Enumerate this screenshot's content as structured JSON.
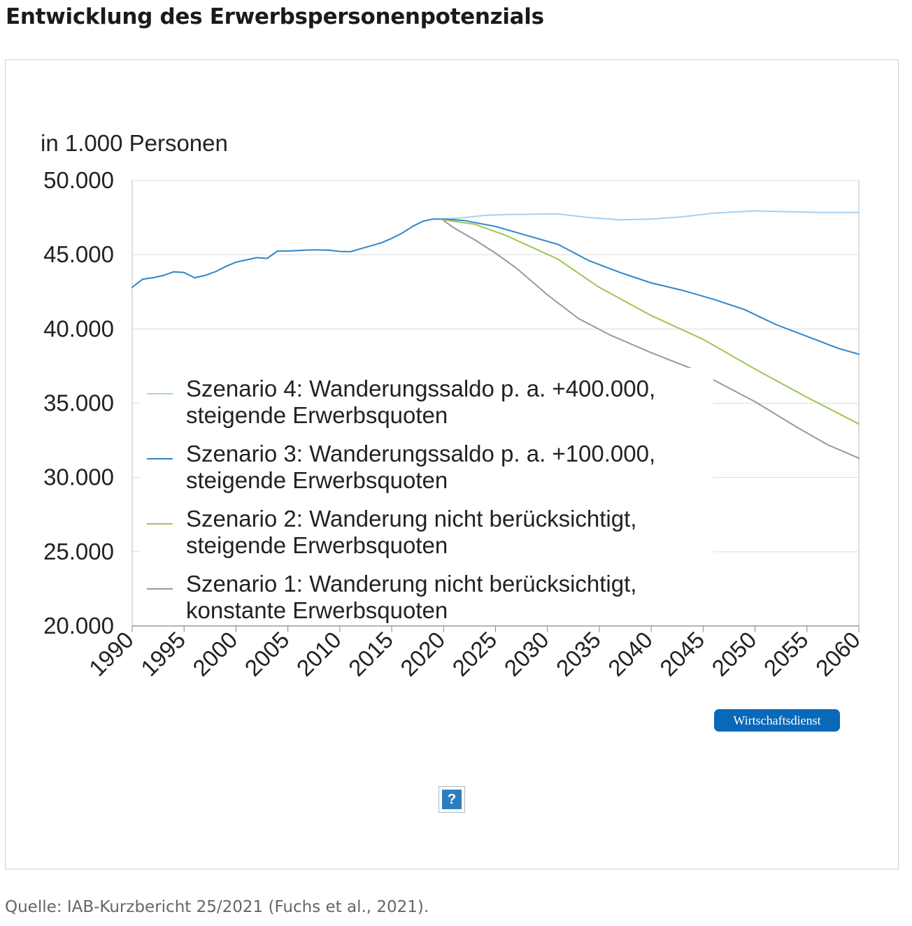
{
  "title": "Entwicklung des Erwerbspersonenpotenzials",
  "source": "Quelle: IAB-Kurzbericht 25/2021 (Fuchs et al., 2021).",
  "brand": "Wirtschaftsdienst",
  "help_icon": {
    "glyph": "?",
    "name": "help-icon"
  },
  "chart_data": {
    "type": "line",
    "title": "",
    "ylabel": "in 1.000 Personen",
    "xlabel": "",
    "xlim": [
      1990,
      2060
    ],
    "ylim": [
      20000,
      50000
    ],
    "x_ticks": [
      "1990",
      "1995",
      "2000",
      "2005",
      "2010",
      "2015",
      "2020",
      "2025",
      "2030",
      "2035",
      "2040",
      "2045",
      "2050",
      "2055",
      "2060"
    ],
    "y_ticks": [
      "20.000",
      "25.000",
      "30.000",
      "35.000",
      "40.000",
      "45.000",
      "50.000"
    ],
    "grid": "horizontal",
    "legend_position": "lower-left inside plot",
    "series": [
      {
        "name": "Szenario 4: Wanderungssaldo p. a. +400.000, steigende Erwerbsquoten",
        "label_lines": [
          "Szenario 4: Wanderungssaldo p. a. +400.000,",
          "steigende Erwerbsquoten"
        ],
        "color": "#a9d0ee",
        "x": [
          2020,
          2022,
          2024,
          2026,
          2028,
          2031,
          2034,
          2037,
          2040,
          2043,
          2046,
          2050,
          2053,
          2056,
          2060
        ],
        "y": [
          47400,
          47500,
          47650,
          47700,
          47720,
          47750,
          47500,
          47350,
          47400,
          47550,
          47800,
          47950,
          47900,
          47850,
          47850
        ]
      },
      {
        "name": "Szenario 3: Wanderungssaldo p. a. +100.000, steigende Erwerbsquoten",
        "label_lines": [
          "Szenario 3: Wanderungssaldo p. a. +100.000,",
          "steigende Erwerbsquoten"
        ],
        "color": "#2f86c8",
        "x": [
          1990,
          1991,
          1992,
          1993,
          1994,
          1995,
          1996,
          1997,
          1998,
          1999,
          2000,
          2001,
          2002,
          2003,
          2004,
          2005,
          2006,
          2007,
          2008,
          2009,
          2010,
          2011,
          2012,
          2013,
          2014,
          2015,
          2016,
          2017,
          2018,
          2019,
          2020,
          2022,
          2025,
          2028,
          2031,
          2034,
          2037,
          2040,
          2043,
          2046,
          2049,
          2052,
          2055,
          2058,
          2060
        ],
        "y": [
          42800,
          43350,
          43450,
          43600,
          43850,
          43800,
          43450,
          43600,
          43850,
          44200,
          44500,
          44650,
          44800,
          44750,
          45250,
          45250,
          45280,
          45320,
          45320,
          45300,
          45220,
          45200,
          45400,
          45600,
          45800,
          46100,
          46450,
          46900,
          47250,
          47400,
          47400,
          47300,
          46900,
          46300,
          45700,
          44600,
          43800,
          43100,
          42600,
          42000,
          41300,
          40300,
          39500,
          38700,
          38300
        ]
      },
      {
        "name": "Szenario 2: Wanderung nicht berücksichtigt, steigende Erwerbsquoten",
        "label_lines": [
          "Szenario 2: Wanderung nicht berücksichtigt,",
          "steigende Erwerbsquoten"
        ],
        "color": "#9dc64f",
        "x": [
          2020,
          2023,
          2026,
          2031,
          2035,
          2040,
          2045,
          2050,
          2055,
          2060
        ],
        "y": [
          47350,
          47050,
          46300,
          44700,
          42800,
          40900,
          39300,
          37300,
          35400,
          33600
        ]
      },
      {
        "name": "Szenario 1: Wanderung nicht berücksichtigt, konstante Erwerbsquoten",
        "label_lines": [
          "Szenario 1: Wanderung nicht berücksichtigt,",
          "konstante Erwerbsquoten"
        ],
        "color": "#999999",
        "x": [
          2020,
          2021,
          2023,
          2025,
          2027,
          2030,
          2033,
          2036,
          2040,
          2044,
          2047,
          2050,
          2054,
          2057,
          2060
        ],
        "y": [
          47300,
          46800,
          46000,
          45100,
          44100,
          42300,
          40700,
          39600,
          38400,
          37300,
          36200,
          35100,
          33400,
          32200,
          31300
        ]
      }
    ],
    "legend_order": [
      0,
      1,
      2,
      3
    ]
  }
}
